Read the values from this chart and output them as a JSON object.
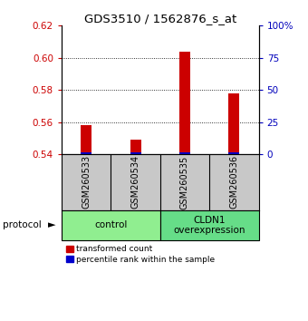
{
  "title": "GDS3510 / 1562876_s_at",
  "samples": [
    "GSM260533",
    "GSM260534",
    "GSM260535",
    "GSM260536"
  ],
  "red_values": [
    0.558,
    0.549,
    0.604,
    0.578
  ],
  "blue_values": [
    0.541,
    0.541,
    0.541,
    0.541
  ],
  "ylim_left": [
    0.54,
    0.62
  ],
  "ylim_right": [
    0,
    100
  ],
  "yticks_left": [
    0.54,
    0.56,
    0.58,
    0.6,
    0.62
  ],
  "yticks_right": [
    0,
    25,
    50,
    75,
    100
  ],
  "ytick_labels_right": [
    "0",
    "25",
    "50",
    "75",
    "100%"
  ],
  "grid_values": [
    0.56,
    0.58,
    0.6
  ],
  "groups": [
    {
      "label": "control",
      "samples": [
        0,
        1
      ],
      "color": "#90EE90"
    },
    {
      "label": "CLDN1\noverexpression",
      "samples": [
        2,
        3
      ],
      "color": "#66DD88"
    }
  ],
  "protocol_label": "protocol",
  "red_color": "#CC0000",
  "blue_color": "#0000CC",
  "left_tick_color": "#CC0000",
  "right_tick_color": "#0000BB",
  "sample_box_color": "#C8C8C8",
  "background_color": "#FFFFFF"
}
